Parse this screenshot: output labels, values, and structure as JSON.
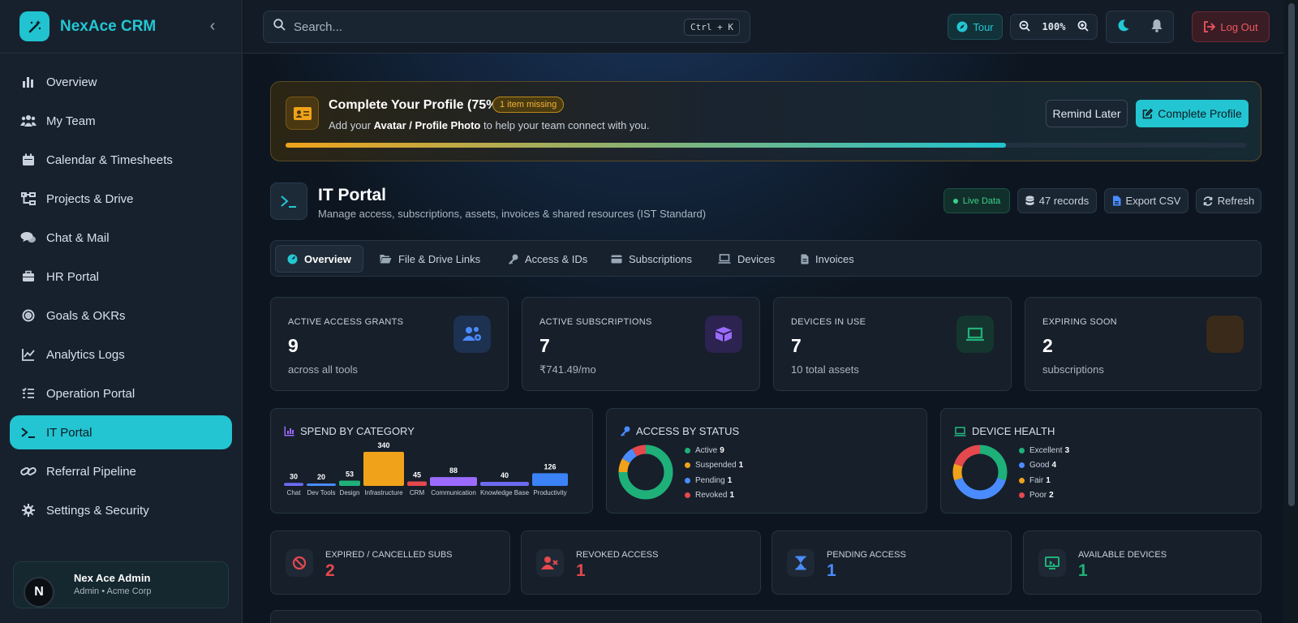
{
  "brand": {
    "name": "NexAce CRM"
  },
  "sidebar": {
    "items": [
      {
        "label": "Overview",
        "icon": "bar-chart-icon"
      },
      {
        "label": "My Team",
        "icon": "users-icon"
      },
      {
        "label": "Calendar & Timesheets",
        "icon": "calendar-icon"
      },
      {
        "label": "Projects & Drive",
        "icon": "sitemap-icon"
      },
      {
        "label": "Chat & Mail",
        "icon": "chat-icon"
      },
      {
        "label": "HR Portal",
        "icon": "briefcase-icon"
      },
      {
        "label": "Goals & OKRs",
        "icon": "target-icon"
      },
      {
        "label": "Analytics Logs",
        "icon": "line-chart-icon"
      },
      {
        "label": "Operation Portal",
        "icon": "list-check-icon"
      },
      {
        "label": "IT Portal",
        "icon": "terminal-icon",
        "active": true
      },
      {
        "label": "Referral Pipeline",
        "icon": "link-icon"
      },
      {
        "label": "Settings & Security",
        "icon": "gear-icon"
      }
    ],
    "user": {
      "name": "Nex Ace Admin",
      "role": "Admin • Acme Corp",
      "initial": "N"
    }
  },
  "topbar": {
    "search_placeholder": "Search...",
    "shortcut": "Ctrl + K",
    "tour_label": "Tour",
    "zoom_level": "100%",
    "logout_label": "Log Out"
  },
  "profile_banner": {
    "title": "Complete Your Profile (75%)",
    "badge": "1 item missing",
    "text_prefix": "Add your ",
    "text_bold": "Avatar / Profile Photo",
    "text_suffix": " to help your team connect with you.",
    "progress": 0.75,
    "remind_label": "Remind Later",
    "complete_label": "Complete Profile"
  },
  "page": {
    "title": "IT Portal",
    "subtitle": "Manage access, subscriptions, assets, invoices & shared resources (IST Standard)",
    "live_label": "Live Data",
    "records_label": "47 records",
    "export_label": "Export CSV",
    "refresh_label": "Refresh"
  },
  "tabs": [
    {
      "label": "Overview",
      "active": true
    },
    {
      "label": "File & Drive Links"
    },
    {
      "label": "Access & IDs"
    },
    {
      "label": "Subscriptions"
    },
    {
      "label": "Devices"
    },
    {
      "label": "Invoices"
    }
  ],
  "stats": [
    {
      "label": "ACTIVE ACCESS GRANTS",
      "value": "9",
      "sub": "across all tools",
      "icon": "users-cog-icon",
      "color": "#4a8cff"
    },
    {
      "label": "ACTIVE SUBSCRIPTIONS",
      "value": "7",
      "sub": "₹741.49/mo",
      "icon": "box-icon",
      "color": "#9b6bff"
    },
    {
      "label": "DEVICES IN USE",
      "value": "7",
      "sub": "10 total assets",
      "icon": "laptop-icon",
      "color": "#22b07a"
    },
    {
      "label": "EXPIRING SOON",
      "value": "2",
      "sub": "subscriptions",
      "icon": "clock-icon",
      "color": "#b87a2a"
    }
  ],
  "spend_panel": {
    "title": "SPEND BY CATEGORY"
  },
  "access_panel": {
    "title": "ACCESS BY STATUS",
    "legend": [
      {
        "label": "Active",
        "value": "9",
        "color": "#1fb07a"
      },
      {
        "label": "Suspended",
        "value": "1",
        "color": "#f0a21a"
      },
      {
        "label": "Pending",
        "value": "1",
        "color": "#4a8cff"
      },
      {
        "label": "Revoked",
        "value": "1",
        "color": "#e5484d"
      }
    ]
  },
  "device_panel": {
    "title": "DEVICE HEALTH",
    "legend": [
      {
        "label": "Excellent",
        "value": "3",
        "color": "#1fb07a"
      },
      {
        "label": "Good",
        "value": "4",
        "color": "#4a8cff"
      },
      {
        "label": "Fair",
        "value": "1",
        "color": "#f0a21a"
      },
      {
        "label": "Poor",
        "value": "2",
        "color": "#e5484d"
      }
    ]
  },
  "bottom_stats": [
    {
      "label": "EXPIRED / CANCELLED SUBS",
      "value": "2",
      "icon": "ban-icon",
      "color": "#e5484d"
    },
    {
      "label": "REVOKED ACCESS",
      "value": "1",
      "icon": "user-x-icon",
      "color": "#e5484d"
    },
    {
      "label": "PENDING ACCESS",
      "value": "1",
      "icon": "hourglass-icon",
      "color": "#4a8cff"
    },
    {
      "label": "AVAILABLE DEVICES",
      "value": "1",
      "icon": "device-icon",
      "color": "#1fb07a"
    }
  ],
  "chart_data": [
    {
      "type": "bar",
      "title": "SPEND BY CATEGORY",
      "categories": [
        "Chat",
        "Dev Tools",
        "Design",
        "Infrastructure",
        "CRM",
        "Communication",
        "Knowledge Base",
        "Productivity"
      ],
      "values": [
        30,
        20,
        53,
        340,
        45,
        88,
        40,
        126
      ],
      "colors": [
        "#6b6bf0",
        "#4a8cff",
        "#1fb07a",
        "#f0a21a",
        "#e5484d",
        "#9b6bff",
        "#6b6bf0",
        "#3b82f6"
      ]
    },
    {
      "type": "pie",
      "title": "ACCESS BY STATUS",
      "categories": [
        "Active",
        "Suspended",
        "Pending",
        "Revoked"
      ],
      "values": [
        9,
        1,
        1,
        1
      ]
    },
    {
      "type": "pie",
      "title": "DEVICE HEALTH",
      "categories": [
        "Excellent",
        "Good",
        "Fair",
        "Poor"
      ],
      "values": [
        3,
        4,
        1,
        2
      ]
    }
  ]
}
